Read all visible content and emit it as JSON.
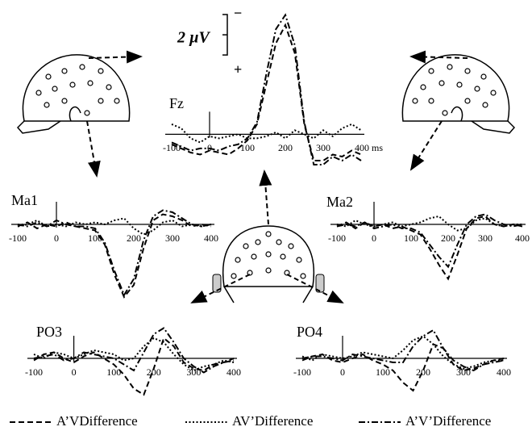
{
  "scale_bar": {
    "label": "2 µV",
    "value": 2,
    "minus": "−",
    "plus": "+"
  },
  "chart_data": [
    {
      "type": "line",
      "title": "Fz",
      "xlim": [
        -100,
        400
      ],
      "ylim": [
        1.5,
        -6
      ],
      "xticks": [
        -100,
        0,
        100,
        200,
        300,
        {
          "value": 400,
          "label": "400 ms"
        }
      ],
      "x": [
        -100,
        -75,
        -50,
        -25,
        0,
        25,
        50,
        75,
        100,
        125,
        150,
        175,
        200,
        225,
        250,
        275,
        300,
        325,
        350,
        375,
        400
      ],
      "series": [
        {
          "name": "A’VDifference",
          "color": "#000000",
          "dash": "dashed",
          "values": [
            0.5,
            0.7,
            0.9,
            1.0,
            0.8,
            0.9,
            1.0,
            0.7,
            0.3,
            -0.5,
            -2.5,
            -4.5,
            -5.4,
            -4.0,
            -0.5,
            1.3,
            1.3,
            1.0,
            1.1,
            0.8,
            1.0
          ]
        },
        {
          "name": "AV’Difference",
          "color": "#000000",
          "dash": "dotted",
          "values": [
            -0.5,
            -0.3,
            0.2,
            0.4,
            0.1,
            0.2,
            0.1,
            0.0,
            0.2,
            0.2,
            0.1,
            -0.1,
            0.2,
            -0.2,
            0.0,
            0.2,
            -0.2,
            0.1,
            -0.3,
            -0.5,
            -0.2
          ]
        },
        {
          "name": "A’V’Difference",
          "color": "#000000",
          "dash": "dashdot",
          "values": [
            0.4,
            0.6,
            0.8,
            0.7,
            0.7,
            0.8,
            0.6,
            0.5,
            0.2,
            -0.6,
            -3.0,
            -5.2,
            -5.9,
            -4.4,
            -0.6,
            1.5,
            1.5,
            1.1,
            1.3,
            1.0,
            1.3
          ]
        }
      ]
    },
    {
      "type": "line",
      "title": "Ma1",
      "xlim": [
        -100,
        400
      ],
      "ylim": [
        4,
        -1.5
      ],
      "xticks": [
        -100,
        0,
        100,
        200,
        300,
        400
      ],
      "x": [
        -100,
        -75,
        -50,
        -25,
        0,
        25,
        50,
        75,
        100,
        125,
        150,
        175,
        200,
        225,
        250,
        275,
        300,
        325,
        350,
        375,
        400
      ],
      "series": [
        {
          "name": "A’VDifference",
          "color": "#000000",
          "dash": "dashed",
          "values": [
            0.1,
            -0.1,
            0.2,
            0.0,
            0.1,
            -0.1,
            0.1,
            0.2,
            0.3,
            1.0,
            2.5,
            3.6,
            3.0,
            1.2,
            -0.2,
            -0.5,
            -0.4,
            -0.2,
            0.1,
            0.0,
            0.1
          ]
        },
        {
          "name": "AV’Difference",
          "color": "#000000",
          "dash": "dotted",
          "values": [
            0.1,
            0.0,
            -0.2,
            0.1,
            0.0,
            0.1,
            -0.1,
            0.0,
            -0.1,
            0.0,
            -0.2,
            -0.3,
            0.2,
            0.5,
            0.3,
            -0.1,
            -0.2,
            0.1,
            0.0,
            0.1,
            0.0
          ]
        },
        {
          "name": "A’V’Difference",
          "color": "#000000",
          "dash": "dashdot",
          "values": [
            0.0,
            0.1,
            -0.1,
            0.1,
            -0.2,
            0.0,
            0.1,
            0.1,
            0.2,
            0.9,
            2.3,
            3.5,
            2.7,
            0.8,
            -0.4,
            -0.7,
            -0.6,
            -0.3,
            0.0,
            0.1,
            0.0
          ]
        }
      ]
    },
    {
      "type": "line",
      "title": "Ma2",
      "xlim": [
        -100,
        400
      ],
      "ylim": [
        4,
        -1.5
      ],
      "xticks": [
        -100,
        0,
        100,
        200,
        300,
        400
      ],
      "x": [
        -100,
        -75,
        -50,
        -25,
        0,
        25,
        50,
        75,
        100,
        125,
        150,
        175,
        200,
        225,
        250,
        275,
        300,
        325,
        350,
        375,
        400
      ],
      "series": [
        {
          "name": "A’VDifference",
          "color": "#000000",
          "dash": "dashed",
          "values": [
            0.1,
            -0.1,
            0.2,
            -0.1,
            0.1,
            0.0,
            0.2,
            0.1,
            0.3,
            0.5,
            1.2,
            2.0,
            2.7,
            1.5,
            0.2,
            -0.3,
            -0.4,
            0.0,
            0.1,
            0.0,
            0.1
          ]
        },
        {
          "name": "AV’Difference",
          "color": "#000000",
          "dash": "dotted",
          "values": [
            0.0,
            0.1,
            -0.2,
            0.0,
            0.1,
            0.0,
            -0.1,
            0.1,
            0.0,
            -0.1,
            -0.3,
            -0.4,
            0.0,
            0.3,
            0.2,
            -0.2,
            -0.3,
            0.0,
            0.1,
            0.0,
            0.0
          ]
        },
        {
          "name": "A’V’Difference",
          "color": "#000000",
          "dash": "dashdot",
          "values": [
            0.1,
            0.0,
            0.1,
            -0.1,
            0.2,
            0.1,
            0.0,
            0.2,
            0.2,
            0.4,
            1.0,
            1.6,
            2.1,
            1.0,
            0.0,
            -0.4,
            -0.5,
            -0.2,
            0.0,
            0.1,
            0.0
          ]
        }
      ]
    },
    {
      "type": "line",
      "title": "PO3",
      "xlim": [
        -100,
        400
      ],
      "ylim": [
        2,
        -2
      ],
      "xticks": [
        -100,
        0,
        100,
        200,
        300,
        400
      ],
      "x": [
        -100,
        -75,
        -50,
        -25,
        0,
        25,
        50,
        75,
        100,
        125,
        150,
        175,
        200,
        225,
        250,
        275,
        300,
        325,
        350,
        375,
        400
      ],
      "series": [
        {
          "name": "A’VDifference",
          "color": "#000000",
          "dash": "dashed",
          "values": [
            0.1,
            -0.2,
            -0.3,
            0.0,
            0.2,
            -0.1,
            -0.3,
            0.0,
            0.3,
            0.8,
            1.5,
            1.8,
            0.5,
            -1.0,
            -0.6,
            0.2,
            0.5,
            0.6,
            0.3,
            0.2,
            0.0
          ]
        },
        {
          "name": "AV’Difference",
          "color": "#000000",
          "dash": "dotted",
          "values": [
            -0.2,
            0.0,
            -0.3,
            -0.2,
            0.0,
            -0.2,
            -0.4,
            -0.3,
            -0.2,
            0.1,
            0.0,
            -0.6,
            -1.0,
            -0.8,
            -0.2,
            0.3,
            0.6,
            0.4,
            0.3,
            0.1,
            0.2
          ]
        },
        {
          "name": "A’V’Difference",
          "color": "#000000",
          "dash": "dashdot",
          "values": [
            0.0,
            -0.1,
            -0.2,
            0.1,
            0.0,
            -0.3,
            -0.2,
            -0.1,
            0.0,
            0.3,
            0.6,
            -0.3,
            -1.2,
            -1.5,
            -0.8,
            0.0,
            0.4,
            0.7,
            0.4,
            0.2,
            0.1
          ]
        }
      ]
    },
    {
      "type": "line",
      "title": "PO4",
      "xlim": [
        -100,
        400
      ],
      "ylim": [
        2,
        -2
      ],
      "xticks": [
        -100,
        0,
        100,
        200,
        300,
        400
      ],
      "x": [
        -100,
        -75,
        -50,
        -25,
        0,
        25,
        50,
        75,
        100,
        125,
        150,
        175,
        200,
        225,
        250,
        275,
        300,
        325,
        350,
        375,
        400
      ],
      "series": [
        {
          "name": "A’VDifference",
          "color": "#000000",
          "dash": "dashed",
          "values": [
            0.1,
            -0.1,
            -0.2,
            0.1,
            0.2,
            0.0,
            -0.2,
            0.1,
            0.3,
            0.6,
            1.2,
            1.6,
            0.6,
            -0.7,
            -0.5,
            0.3,
            0.6,
            0.5,
            0.3,
            0.1,
            0.0
          ]
        },
        {
          "name": "AV’Difference",
          "color": "#000000",
          "dash": "dotted",
          "values": [
            -0.1,
            0.1,
            -0.2,
            -0.1,
            0.0,
            -0.1,
            -0.3,
            -0.2,
            -0.1,
            0.0,
            -0.4,
            -0.9,
            -1.1,
            -0.7,
            -0.1,
            0.3,
            0.5,
            0.4,
            0.2,
            0.1,
            0.1
          ]
        },
        {
          "name": "A’V’Difference",
          "color": "#000000",
          "dash": "dashdot",
          "values": [
            0.0,
            -0.1,
            -0.1,
            0.0,
            0.1,
            -0.2,
            -0.1,
            0.0,
            0.1,
            0.2,
            0.2,
            -0.6,
            -1.1,
            -1.4,
            -0.5,
            0.1,
            0.4,
            0.6,
            0.3,
            0.2,
            0.1
          ]
        }
      ]
    }
  ]
}
